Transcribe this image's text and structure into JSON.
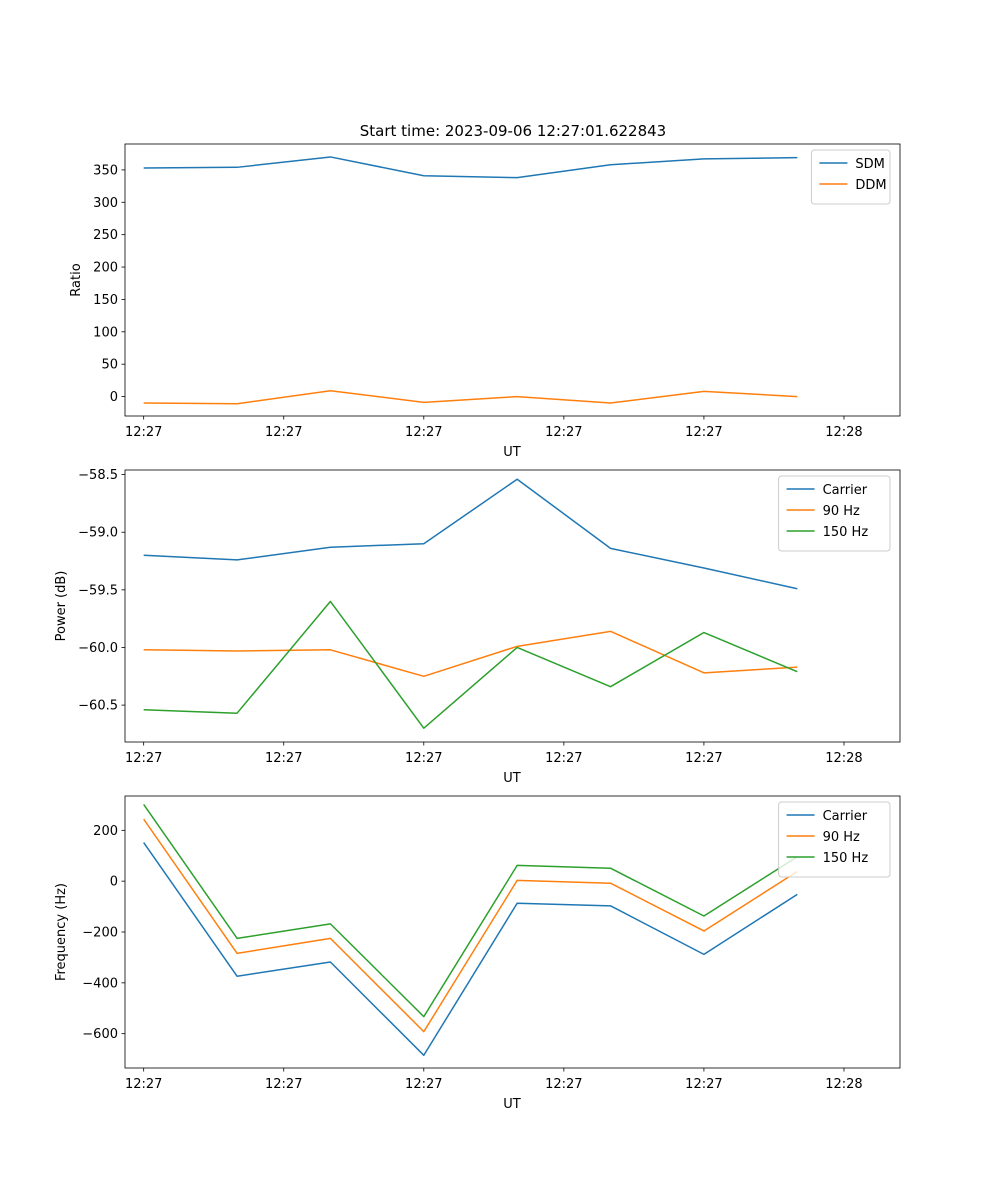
{
  "figure": {
    "title": "Start time: 2023-09-06 12:27:01.622843"
  },
  "chart_data": [
    {
      "type": "line",
      "title": "Start time: 2023-09-06 12:27:01.622843",
      "xlabel": "UT",
      "ylabel": "Ratio",
      "x": [
        1,
        2,
        3,
        4,
        5,
        6,
        7,
        8
      ],
      "xlim": [
        0.8,
        9.1
      ],
      "xticks": [
        1,
        2.5,
        4,
        5.5,
        7,
        8.5
      ],
      "xtick_labels": [
        "12:27",
        "12:27",
        "12:27",
        "12:27",
        "12:27",
        "12:28"
      ],
      "ylim": [
        -30,
        390
      ],
      "yticks": [
        0,
        50,
        100,
        150,
        200,
        250,
        300,
        350
      ],
      "ytick_labels": [
        "0",
        "50",
        "100",
        "150",
        "200",
        "250",
        "300",
        "350"
      ],
      "legend_position": "top-right",
      "grid": false,
      "series": [
        {
          "name": "SDM",
          "color": "#1f77b4",
          "values": [
            353,
            354,
            370,
            341,
            338,
            358,
            367,
            369
          ]
        },
        {
          "name": "DDM",
          "color": "#ff7f0e",
          "values": [
            -10,
            -11,
            9,
            -9,
            0,
            -10,
            8,
            0
          ]
        }
      ]
    },
    {
      "type": "line",
      "title": "",
      "xlabel": "UT",
      "ylabel": "Power (dB)",
      "x": [
        1,
        2,
        3,
        4,
        5,
        6,
        7,
        8
      ],
      "xlim": [
        0.8,
        9.1
      ],
      "xticks": [
        1,
        2.5,
        4,
        5.5,
        7,
        8.5
      ],
      "xtick_labels": [
        "12:27",
        "12:27",
        "12:27",
        "12:27",
        "12:27",
        "12:28"
      ],
      "ylim": [
        -60.82,
        -58.46
      ],
      "yticks": [
        -60.5,
        -60.0,
        -59.5,
        -59.0,
        -58.5
      ],
      "ytick_labels": [
        "−60.5",
        "−60.0",
        "−59.5",
        "−59.0",
        "−58.5"
      ],
      "legend_position": "top-right",
      "grid": false,
      "series": [
        {
          "name": "Carrier",
          "color": "#1f77b4",
          "values": [
            -59.2,
            -59.24,
            -59.13,
            -59.1,
            -58.54,
            -59.14,
            -59.31,
            -59.49
          ]
        },
        {
          "name": "90 Hz",
          "color": "#ff7f0e",
          "values": [
            -60.02,
            -60.03,
            -60.02,
            -60.25,
            -59.99,
            -59.86,
            -60.22,
            -60.17
          ]
        },
        {
          "name": "150 Hz",
          "color": "#2ca02c",
          "values": [
            -60.54,
            -60.57,
            -59.6,
            -60.7,
            -60.0,
            -60.34,
            -59.87,
            -60.21
          ]
        }
      ]
    },
    {
      "type": "line",
      "title": "",
      "xlabel": "UT",
      "ylabel": "Frequency (Hz)",
      "x": [
        1,
        2,
        3,
        4,
        5,
        6,
        7,
        8
      ],
      "xlim": [
        0.8,
        9.1
      ],
      "xticks": [
        1,
        2.5,
        4,
        5.5,
        7,
        8.5
      ],
      "xtick_labels": [
        "12:27",
        "12:27",
        "12:27",
        "12:27",
        "12:27",
        "12:28"
      ],
      "ylim": [
        -735,
        335
      ],
      "yticks": [
        -600,
        -400,
        -200,
        0,
        200
      ],
      "ytick_labels": [
        "−600",
        "−400",
        "−200",
        "0",
        "200"
      ],
      "legend_position": "top-right",
      "grid": false,
      "series": [
        {
          "name": "Carrier",
          "color": "#1f77b4",
          "values": [
            152,
            -374,
            -318,
            -685,
            -87,
            -97,
            -288,
            -52
          ]
        },
        {
          "name": "90 Hz",
          "color": "#ff7f0e",
          "values": [
            244,
            -284,
            -225,
            -592,
            3,
            -8,
            -196,
            38
          ]
        },
        {
          "name": "150 Hz",
          "color": "#2ca02c",
          "values": [
            302,
            -225,
            -168,
            -533,
            62,
            51,
            -137,
            96
          ]
        }
      ]
    }
  ]
}
